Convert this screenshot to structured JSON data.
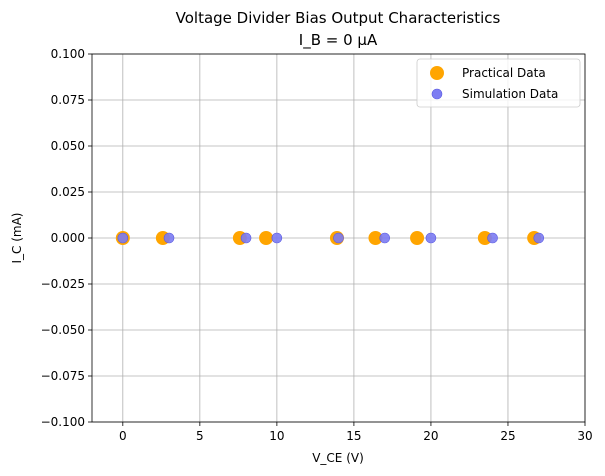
{
  "chart_data": {
    "type": "scatter",
    "title": "Voltage Divider Bias Output Characteristics",
    "subtitle": "I_B = 0 µA",
    "xlabel": "V_CE (V)",
    "ylabel": "I_C (mA)",
    "xlim": [
      -2,
      30
    ],
    "ylim": [
      -0.1,
      0.1
    ],
    "xticks": [
      "0",
      "5",
      "10",
      "15",
      "20",
      "25",
      "30"
    ],
    "yticks": [
      "−0.100",
      "−0.075",
      "−0.050",
      "−0.025",
      "0.000",
      "0.025",
      "0.050",
      "0.075",
      "0.100"
    ],
    "grid": true,
    "legend_position": "top-right",
    "series": [
      {
        "name": "Practical Data",
        "color": "#ffa500",
        "x": [
          0,
          2.6,
          7.6,
          9.3,
          13.9,
          16.4,
          19.1,
          23.5,
          26.7
        ],
        "y": [
          0,
          0,
          0,
          0,
          0,
          0,
          0,
          0,
          0
        ]
      },
      {
        "name": "Simulation Data",
        "color": "#7b7bf2",
        "x": [
          0,
          3,
          8,
          10,
          14,
          17,
          20,
          24,
          27
        ],
        "y": [
          0,
          0,
          0,
          0,
          0,
          0,
          0,
          0,
          0
        ]
      }
    ]
  }
}
